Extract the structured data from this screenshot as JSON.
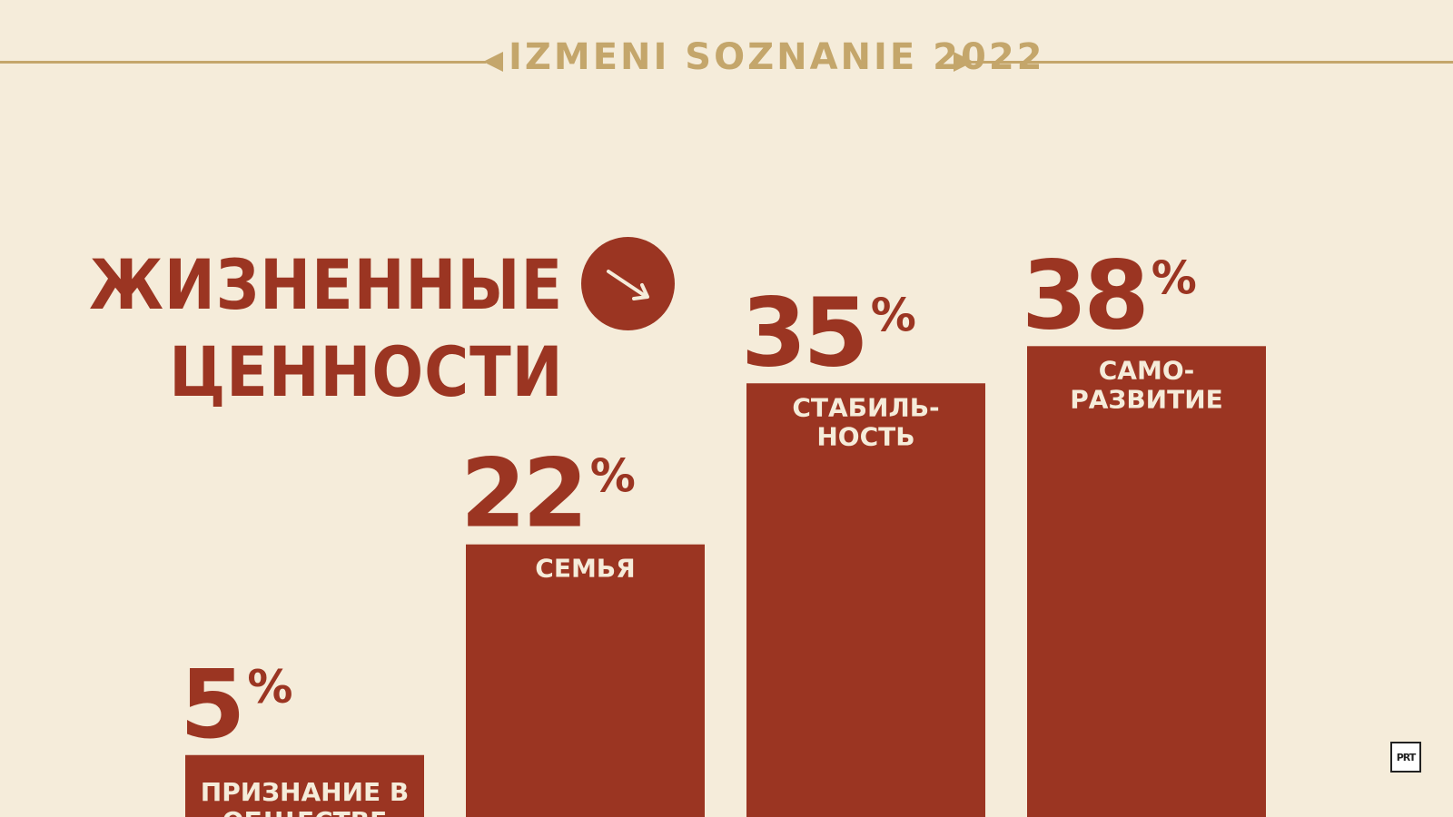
{
  "header": {
    "title": "IZMENI SOZNANIE 2022"
  },
  "headline": {
    "line1": "ЖИЗНЕННЫЕ",
    "line2": "ЦЕННОСТИ"
  },
  "colors": {
    "bar": "#9b3522",
    "accent": "#c4a66b",
    "background": "#f5ecda",
    "label": "#f5ecda"
  },
  "icons": {
    "headline_arrow": "arrow-down-right-icon",
    "header_left": "triangle-left-icon",
    "header_right": "triangle-right-icon"
  },
  "logo": {
    "text": "PRT"
  },
  "chart_data": {
    "type": "bar",
    "categories": [
      [
        "ПРИЗНАНИЕ В",
        "ОБЩЕСТВЕ"
      ],
      [
        "СЕМЬЯ"
      ],
      [
        "СТАБИЛЬ-",
        "НОСТЬ"
      ],
      [
        "САМО-",
        "РАЗВИТИЕ"
      ]
    ],
    "values": [
      5,
      22,
      35,
      38
    ],
    "value_suffix": "%",
    "title": "ЖИЗНЕННЫЕ ЦЕННОСТИ",
    "ylim": [
      0,
      50
    ],
    "grid": false,
    "legend": "none"
  }
}
